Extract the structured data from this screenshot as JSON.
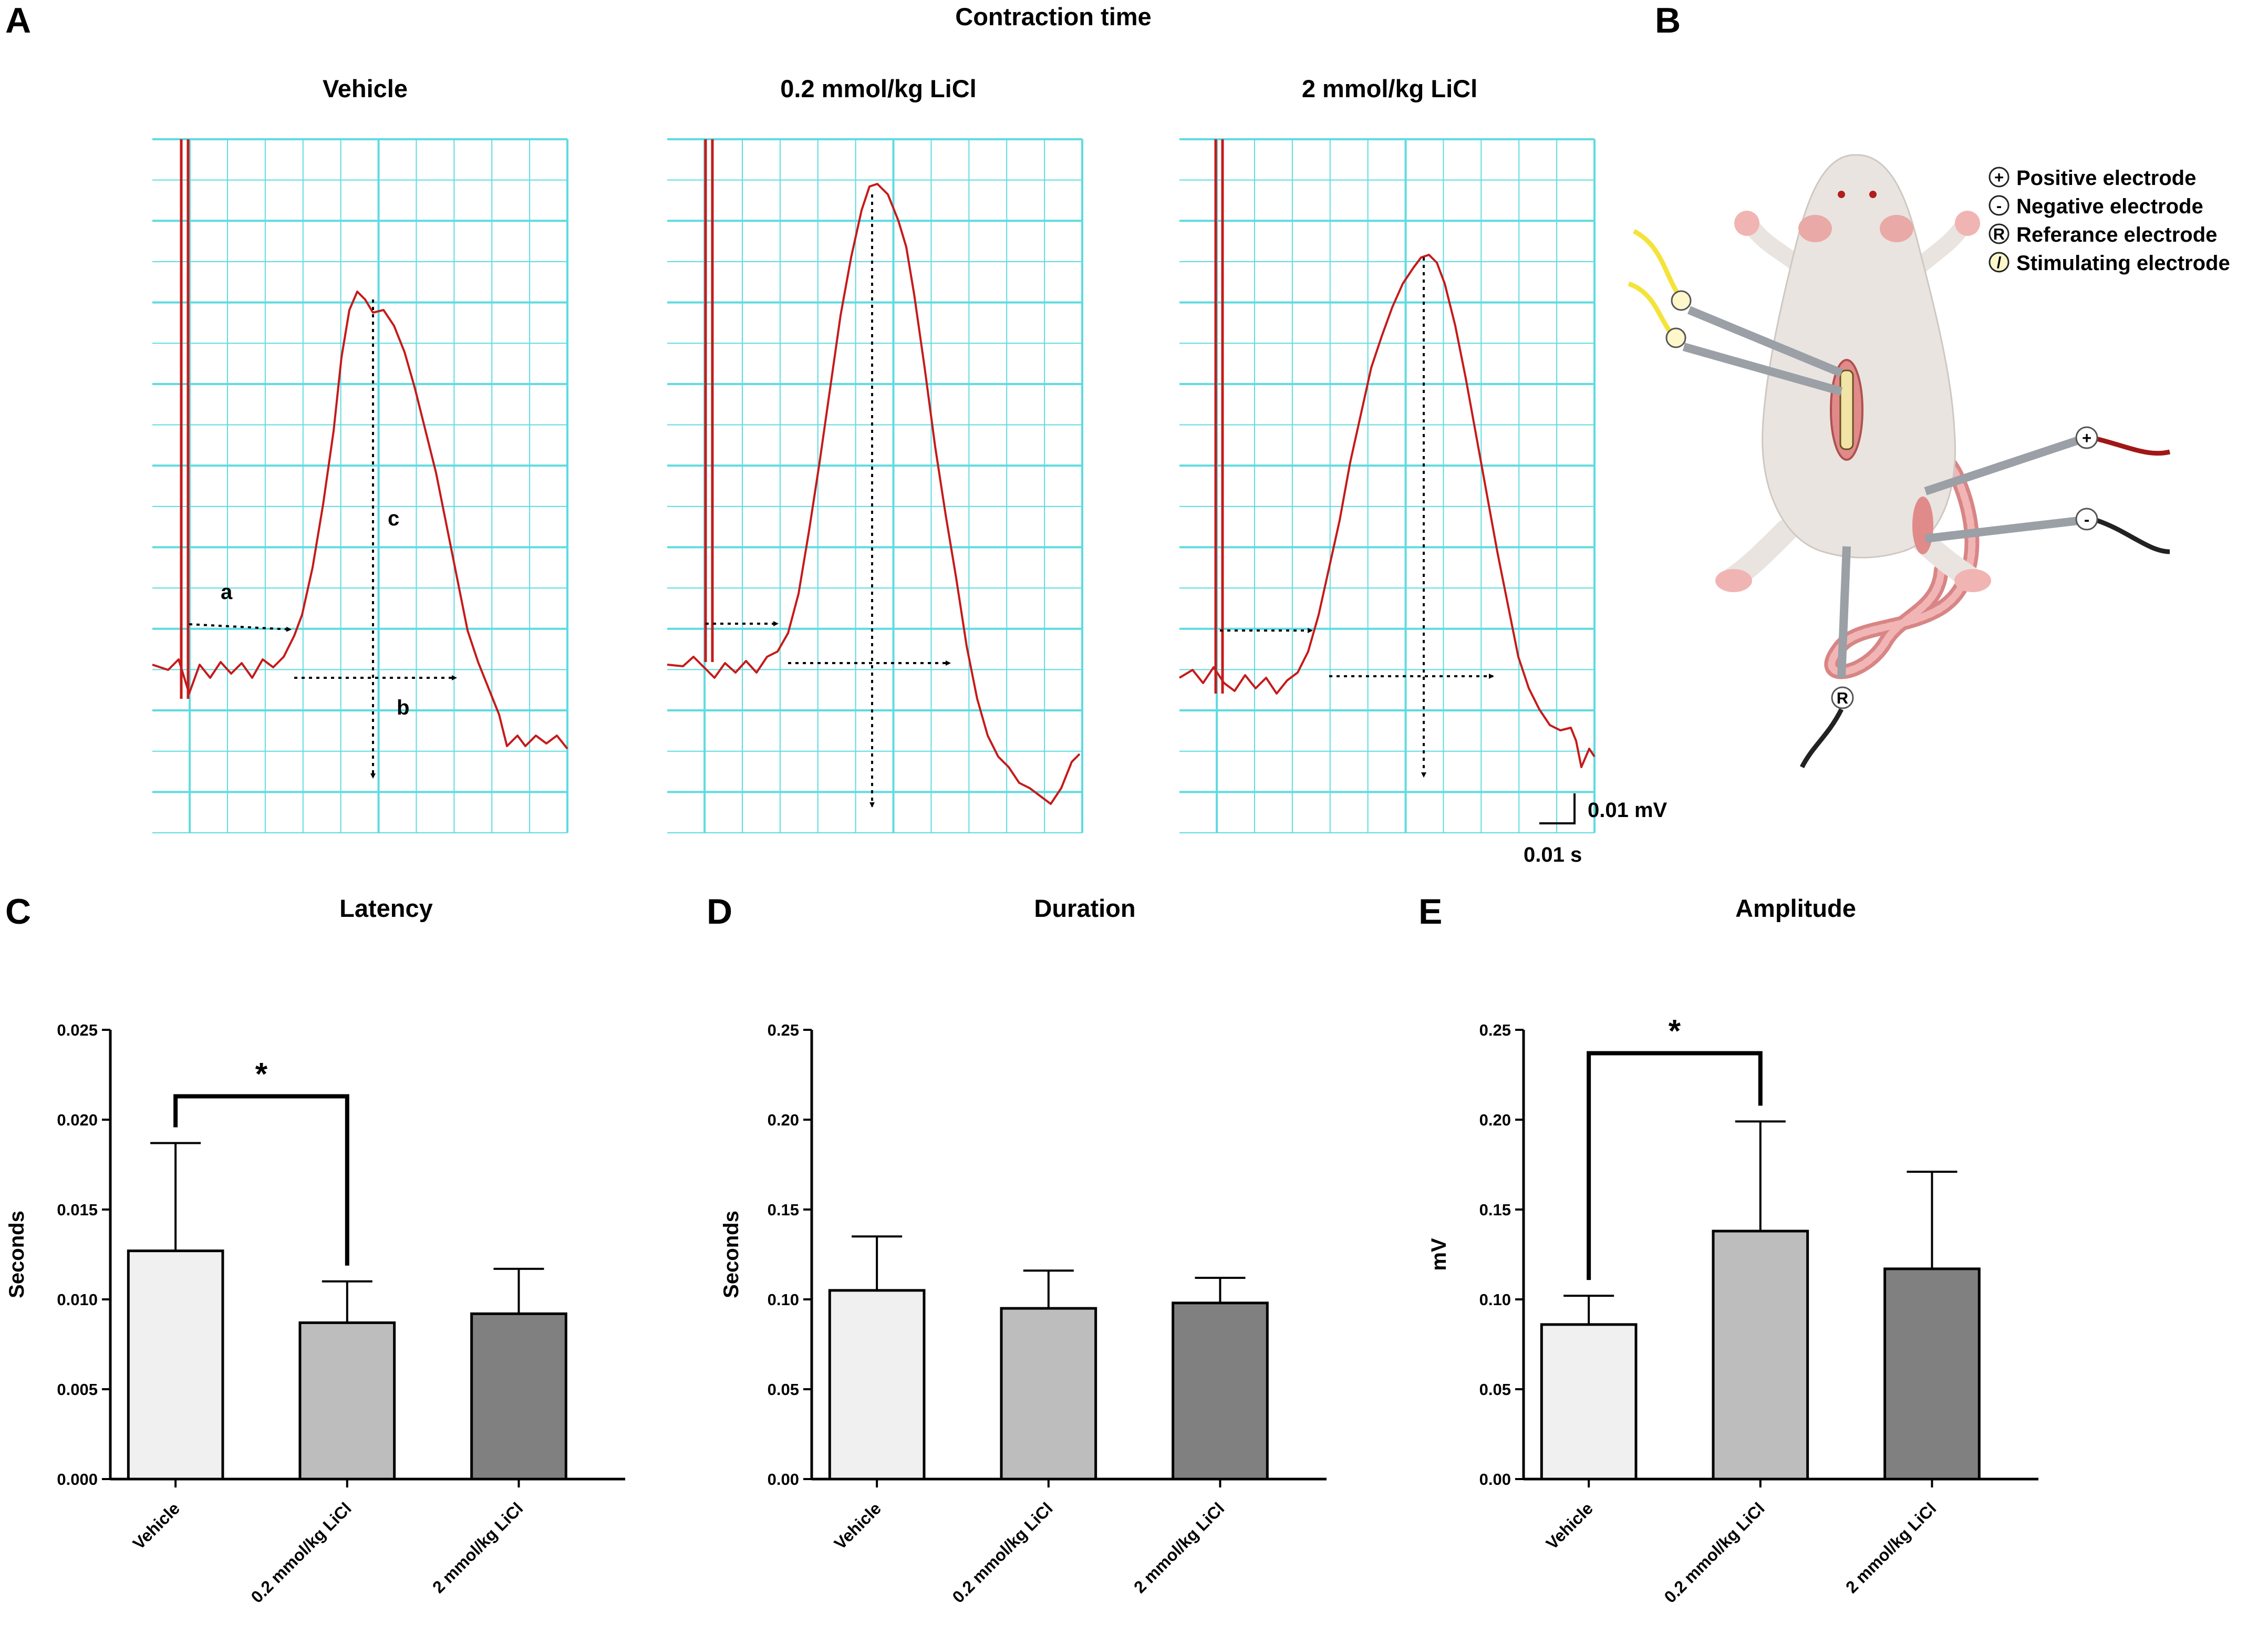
{
  "figure": {
    "panel_letters": [
      "A",
      "B",
      "C",
      "D",
      "E"
    ],
    "traces_title": "Contraction time",
    "colors": {
      "grid": "#5fdbe0",
      "trace": "#c61a1a",
      "bar_vehicle": "#f0f0f0",
      "bar_low": "#bdbdbd",
      "bar_high": "#808080",
      "skin": "#e9e4e0",
      "tail": "#e59a9a"
    }
  },
  "traces": [
    {
      "title": "Vehicle",
      "annotations": [
        "a",
        "b",
        "c"
      ]
    },
    {
      "title": "0.2 mmol/kg LiCl",
      "annotations": []
    },
    {
      "title": "2 mmol/kg LiCl",
      "annotations": []
    }
  ],
  "scale_bar": {
    "voltage": "0.01 mV",
    "time": "0.01 s"
  },
  "diagram_legend": [
    {
      "symbol": "+",
      "label": "Positive electrode",
      "icon": "positive-electrode-icon"
    },
    {
      "symbol": "-",
      "label": "Negative electrode",
      "icon": "negative-electrode-icon"
    },
    {
      "symbol": "R",
      "label": "Referance electrode",
      "icon": "reference-electrode-icon"
    },
    {
      "symbol": "/",
      "label": "Stimulating electrode",
      "icon": "stimulating-electrode-icon"
    }
  ],
  "diagram_marks": {
    "reference": "R",
    "positive": "+",
    "negative": "-"
  },
  "chart_data": [
    {
      "type": "bar",
      "panel": "C",
      "title": "Latency",
      "ylabel": "Seconds",
      "xlabel": "",
      "categories": [
        "Vehicle",
        "0.2 mmol/kg LiCl",
        "2 mmol/kg LiCl"
      ],
      "values": [
        0.0127,
        0.0087,
        0.0092
      ],
      "errors": [
        0.006,
        0.0023,
        0.0025
      ],
      "ylim": [
        0,
        0.025
      ],
      "yticks": [
        "0.000",
        "0.005",
        "0.010",
        "0.015",
        "0.020",
        "0.025"
      ],
      "significance": [
        {
          "from": 0,
          "to": 1,
          "label": "*",
          "at": 0.0213
        }
      ]
    },
    {
      "type": "bar",
      "panel": "D",
      "title": "Duration",
      "ylabel": "Seconds",
      "xlabel": "",
      "categories": [
        "Vehicle",
        "0.2 mmol/kg LiCl",
        "2 mmol/kg LiCl"
      ],
      "values": [
        0.105,
        0.095,
        0.098
      ],
      "errors": [
        0.03,
        0.021,
        0.014
      ],
      "ylim": [
        0,
        0.25
      ],
      "yticks": [
        "0.00",
        "0.05",
        "0.10",
        "0.15",
        "0.20",
        "0.25"
      ],
      "significance": []
    },
    {
      "type": "bar",
      "panel": "E",
      "title": "Amplitude",
      "ylabel": "mV",
      "xlabel": "",
      "categories": [
        "Vehicle",
        "0.2 mmol/kg LiCl",
        "2 mmol/kg LiCl"
      ],
      "values": [
        0.086,
        0.138,
        0.117
      ],
      "errors": [
        0.016,
        0.061,
        0.054
      ],
      "ylim": [
        0,
        0.25
      ],
      "yticks": [
        "0.00",
        "0.05",
        "0.10",
        "0.15",
        "0.20",
        "0.25"
      ],
      "significance": [
        {
          "from": 0,
          "to": 1,
          "label": "*",
          "at": 0.237
        }
      ]
    }
  ]
}
